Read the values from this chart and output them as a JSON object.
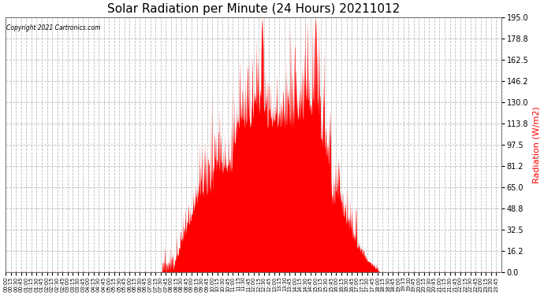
{
  "title": "Solar Radiation per Minute (24 Hours) 20211012",
  "ylabel": "Radiation (W/m2)",
  "copyright_text": "Copyright 2021 Cartronics.com",
  "ylim": [
    0.0,
    195.0
  ],
  "yticks": [
    0.0,
    16.2,
    32.5,
    48.8,
    65.0,
    81.2,
    97.5,
    113.8,
    130.0,
    146.2,
    162.5,
    178.8,
    195.0
  ],
  "fill_color": "#ff0000",
  "line_color": "#ff0000",
  "background_color": "#ffffff",
  "grid_color": "#bbbbbb",
  "title_fontsize": 11,
  "ylabel_color": "#ff0000",
  "copyright_color": "#000000",
  "dashed_zero_color": "#ff0000",
  "total_minutes": 1440,
  "tick_interval_minutes": 15
}
